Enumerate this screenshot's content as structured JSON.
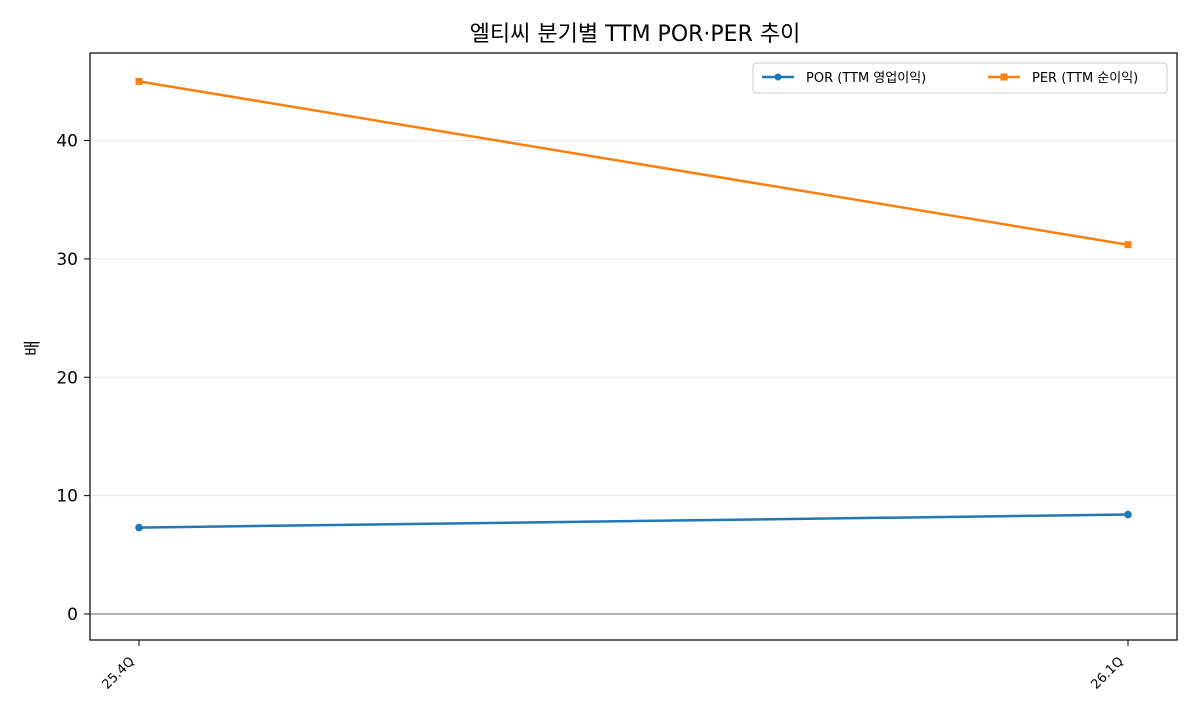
{
  "chart_data": {
    "type": "line",
    "title": "엘티씨 분기별 TTM POR·PER 추이",
    "xlabel": "",
    "ylabel": "배",
    "categories": [
      "25.4Q",
      "26.1Q"
    ],
    "ylim": [
      -2.2,
      47.4
    ],
    "yticks": [
      0,
      10,
      20,
      30,
      40
    ],
    "grid": "horizontal",
    "legend_position": "top-right",
    "series": [
      {
        "name": "POR (TTM 영업이익)",
        "values": [
          7.3,
          8.4
        ],
        "color": "#1f77b4",
        "marker": "circle"
      },
      {
        "name": "PER (TTM 순이익)",
        "values": [
          45.0,
          31.2
        ],
        "color": "#ff7f0e",
        "marker": "square"
      }
    ]
  }
}
